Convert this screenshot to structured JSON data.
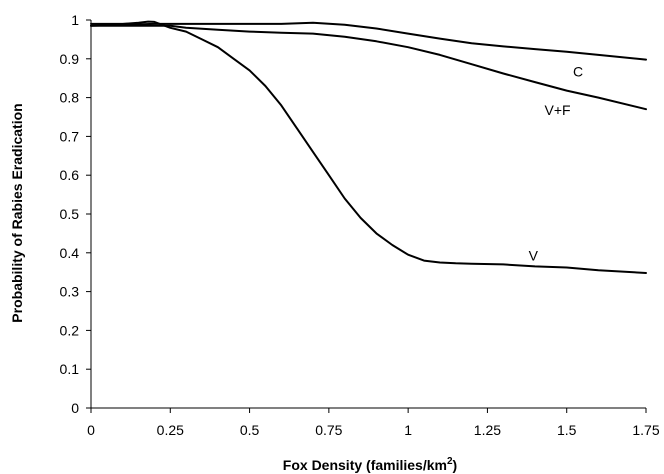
{
  "chart_data": {
    "type": "line",
    "xlabel": "Fox Density (families/km",
    "xlabel_superscript": "2",
    "xlabel_suffix": ")",
    "ylabel": "Probability of Rabies Eradication",
    "xlim": [
      0,
      1.75
    ],
    "ylim": [
      0,
      1
    ],
    "x_ticks": [
      "0",
      "0.25",
      "0.5",
      "0.75",
      "1",
      "1.25",
      "1.5",
      "1.75"
    ],
    "y_ticks": [
      "0",
      "0.1",
      "0.2",
      "0.3",
      "0.4",
      "0.5",
      "0.6",
      "0.7",
      "0.8",
      "0.9",
      "1"
    ],
    "grid": false,
    "series": [
      {
        "name": "C",
        "x": [
          0,
          0.1,
          0.2,
          0.3,
          0.4,
          0.5,
          0.6,
          0.7,
          0.8,
          0.9,
          1.0,
          1.1,
          1.2,
          1.3,
          1.4,
          1.5,
          1.6,
          1.75
        ],
        "y": [
          0.985,
          0.988,
          0.99,
          0.99,
          0.99,
          0.99,
          0.99,
          0.993,
          0.988,
          0.978,
          0.965,
          0.952,
          0.94,
          0.932,
          0.925,
          0.918,
          0.91,
          0.898
        ]
      },
      {
        "name": "V+F",
        "x": [
          0,
          0.1,
          0.2,
          0.25,
          0.3,
          0.4,
          0.5,
          0.6,
          0.7,
          0.8,
          0.9,
          1.0,
          1.1,
          1.2,
          1.3,
          1.4,
          1.5,
          1.6,
          1.75
        ],
        "y": [
          0.985,
          0.985,
          0.985,
          0.985,
          0.98,
          0.975,
          0.97,
          0.967,
          0.965,
          0.957,
          0.945,
          0.93,
          0.91,
          0.886,
          0.862,
          0.84,
          0.818,
          0.8,
          0.77
        ]
      },
      {
        "name": "V",
        "x": [
          0,
          0.05,
          0.1,
          0.15,
          0.18,
          0.2,
          0.25,
          0.3,
          0.35,
          0.4,
          0.45,
          0.5,
          0.55,
          0.6,
          0.65,
          0.7,
          0.75,
          0.8,
          0.85,
          0.9,
          0.95,
          1.0,
          1.05,
          1.1,
          1.15,
          1.2,
          1.3,
          1.4,
          1.5,
          1.6,
          1.75
        ],
        "y": [
          0.99,
          0.99,
          0.99,
          0.993,
          0.996,
          0.995,
          0.98,
          0.97,
          0.95,
          0.93,
          0.9,
          0.87,
          0.83,
          0.78,
          0.72,
          0.66,
          0.6,
          0.54,
          0.49,
          0.45,
          0.42,
          0.395,
          0.38,
          0.375,
          0.373,
          0.372,
          0.37,
          0.365,
          0.362,
          0.355,
          0.348
        ]
      }
    ],
    "annotations": [
      {
        "text": "C",
        "x": 1.52,
        "y": 0.855
      },
      {
        "text": "V+F",
        "x": 1.43,
        "y": 0.755
      },
      {
        "text": "V",
        "x": 1.38,
        "y": 0.38
      }
    ]
  }
}
